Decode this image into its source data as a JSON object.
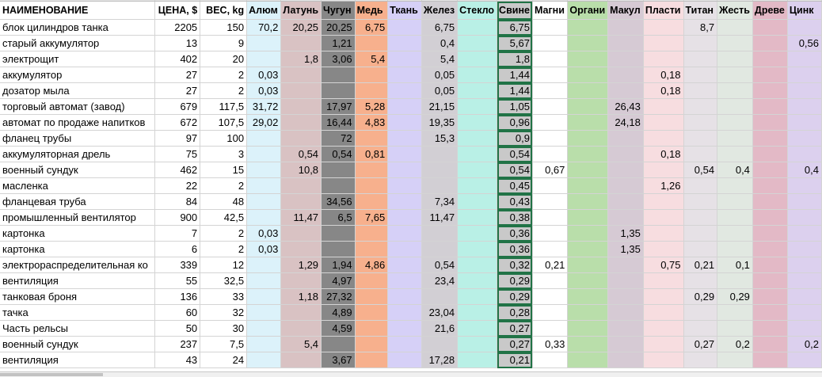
{
  "headers": [
    "НАИМЕНОВАНИЕ",
    "ЦЕНА, $",
    "ВЕС, kg",
    "Алюм",
    "Латунь",
    "Чугун",
    "Медь",
    "Ткань",
    "Желез",
    "Стекло",
    "Свине",
    "Магни",
    "Органи",
    "Макул",
    "Пласти",
    "Титан",
    "Жесть",
    "Древе",
    "Цинк"
  ],
  "column_colors": [
    "#ffffff",
    "#ffffff",
    "#ffffff",
    "#dcf2fa",
    "#d9c2c3",
    "#878787",
    "#f7b08d",
    "#d6d0f7",
    "#d2cfd4",
    "#b9f0e6",
    "#c9c9c9",
    "#ffffff",
    "#b9deaa",
    "#d6cad4",
    "#f7dde0",
    "#e6e1e6",
    "#e1e8e1",
    "#e3b9c6",
    "#dcd0ee"
  ],
  "rows": [
    [
      "блок цилиндров танка",
      "2205",
      "150",
      "70,2",
      "20,25",
      "20,25",
      "6,75",
      "",
      "6,75",
      "",
      "6,75",
      "",
      "",
      "",
      "",
      "8,7",
      "",
      "",
      ""
    ],
    [
      "старый аккумулятор",
      "13",
      "9",
      "",
      "",
      "1,21",
      "",
      "",
      "0,4",
      "",
      "5,67",
      "",
      "",
      "",
      "",
      "",
      "",
      "",
      "0,56"
    ],
    [
      "электрощит",
      "402",
      "20",
      "",
      "1,8",
      "3,06",
      "5,4",
      "",
      "5,4",
      "",
      "1,8",
      "",
      "",
      "",
      "",
      "",
      "",
      "",
      ""
    ],
    [
      "аккумулятор",
      "27",
      "2",
      "0,03",
      "",
      "",
      "",
      "",
      "0,05",
      "",
      "1,44",
      "",
      "",
      "",
      "0,18",
      "",
      "",
      "",
      ""
    ],
    [
      "дозатор мыла",
      "27",
      "2",
      "0,03",
      "",
      "",
      "",
      "",
      "0,05",
      "",
      "1,44",
      "",
      "",
      "",
      "0,18",
      "",
      "",
      "",
      ""
    ],
    [
      "торговый автомат (завод)",
      "679",
      "117,5",
      "31,72",
      "",
      "17,97",
      "5,28",
      "",
      "21,15",
      "",
      "1,05",
      "",
      "",
      "26,43",
      "",
      "",
      "",
      "",
      ""
    ],
    [
      "автомат по продаже напитков",
      "672",
      "107,5",
      "29,02",
      "",
      "16,44",
      "4,83",
      "",
      "19,35",
      "",
      "0,96",
      "",
      "",
      "24,18",
      "",
      "",
      "",
      "",
      ""
    ],
    [
      "фланец трубы",
      "97",
      "100",
      "",
      "",
      "72",
      "",
      "",
      "15,3",
      "",
      "0,9",
      "",
      "",
      "",
      "",
      "",
      "",
      "",
      ""
    ],
    [
      "аккумуляторная дрель",
      "75",
      "3",
      "",
      "0,54",
      "0,54",
      "0,81",
      "",
      "",
      "",
      "0,54",
      "",
      "",
      "",
      "0,18",
      "",
      "",
      "",
      ""
    ],
    [
      "военный сундук",
      "462",
      "15",
      "",
      "10,8",
      "",
      "",
      "",
      "",
      "",
      "0,54",
      "0,67",
      "",
      "",
      "",
      "0,54",
      "0,4",
      "",
      "0,4"
    ],
    [
      "масленка",
      "22",
      "2",
      "",
      "",
      "",
      "",
      "",
      "",
      "",
      "0,45",
      "",
      "",
      "",
      "1,26",
      "",
      "",
      "",
      ""
    ],
    [
      "фланцевая труба",
      "84",
      "48",
      "",
      "",
      "34,56",
      "",
      "",
      "7,34",
      "",
      "0,43",
      "",
      "",
      "",
      "",
      "",
      "",
      "",
      ""
    ],
    [
      "промышленный вентилятор",
      "900",
      "42,5",
      "",
      "11,47",
      "6,5",
      "7,65",
      "",
      "11,47",
      "",
      "0,38",
      "",
      "",
      "",
      "",
      "",
      "",
      "",
      ""
    ],
    [
      "картонка",
      "7",
      "2",
      "0,03",
      "",
      "",
      "",
      "",
      "",
      "",
      "0,36",
      "",
      "",
      "1,35",
      "",
      "",
      "",
      "",
      ""
    ],
    [
      "картонка",
      "6",
      "2",
      "0,03",
      "",
      "",
      "",
      "",
      "",
      "",
      "0,36",
      "",
      "",
      "1,35",
      "",
      "",
      "",
      "",
      ""
    ],
    [
      "электрораспределительная ко",
      "339",
      "12",
      "",
      "1,29",
      "1,94",
      "4,86",
      "",
      "0,54",
      "",
      "0,32",
      "0,21",
      "",
      "",
      "0,75",
      "0,21",
      "0,1",
      "",
      ""
    ],
    [
      "вентиляция",
      "55",
      "32,5",
      "",
      "",
      "4,97",
      "",
      "",
      "23,4",
      "",
      "0,29",
      "",
      "",
      "",
      "",
      "",
      "",
      "",
      ""
    ],
    [
      "танковая броня",
      "136",
      "33",
      "",
      "1,18",
      "27,32",
      "",
      "",
      "",
      "",
      "0,29",
      "",
      "",
      "",
      "",
      "0,29",
      "0,29",
      "",
      ""
    ],
    [
      "тачка",
      "60",
      "32",
      "",
      "",
      "4,89",
      "",
      "",
      "23,04",
      "",
      "0,28",
      "",
      "",
      "",
      "",
      "",
      "",
      "",
      ""
    ],
    [
      "Часть рельсы",
      "50",
      "30",
      "",
      "",
      "4,59",
      "",
      "",
      "21,6",
      "",
      "0,27",
      "",
      "",
      "",
      "",
      "",
      "",
      "",
      ""
    ],
    [
      "военный сундук",
      "237",
      "7,5",
      "",
      "5,4",
      "",
      "",
      "",
      "",
      "",
      "0,27",
      "0,33",
      "",
      "",
      "",
      "0,27",
      "0,2",
      "",
      "0,2"
    ],
    [
      "вентиляция",
      "43",
      "24",
      "",
      "",
      "3,67",
      "",
      "",
      "17,28",
      "",
      "0,21",
      "",
      "",
      "",
      "",
      "",
      "",
      "",
      ""
    ]
  ]
}
